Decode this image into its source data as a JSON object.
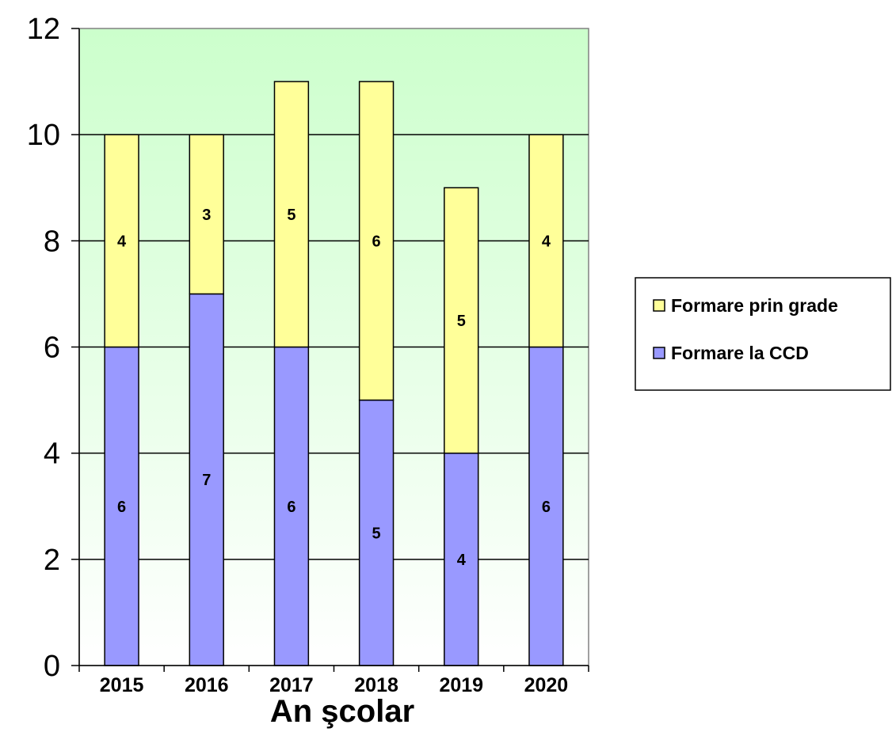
{
  "chart_data": {
    "type": "bar",
    "stacked": true,
    "categories": [
      "2015",
      "2016",
      "2017",
      "2018",
      "2019",
      "2020"
    ],
    "series": [
      {
        "name": "Formare la CCD",
        "values": [
          6,
          7,
          6,
          5,
          4,
          6
        ],
        "color": "#9999ff"
      },
      {
        "name": "Formare prin grade",
        "values": [
          4,
          3,
          5,
          6,
          5,
          4
        ],
        "color": "#ffff99"
      }
    ],
    "xlabel": "An şcolar",
    "ylabel": "",
    "ylim": [
      0,
      12
    ],
    "yticks": [
      "0",
      "2",
      "4",
      "6",
      "8",
      "10",
      "12"
    ],
    "grid": true,
    "legend_position": "right",
    "legend_order": [
      "Formare prin grade",
      "Formare la CCD"
    ],
    "background_gradient": [
      "#ccffcc",
      "#ffffff"
    ]
  }
}
